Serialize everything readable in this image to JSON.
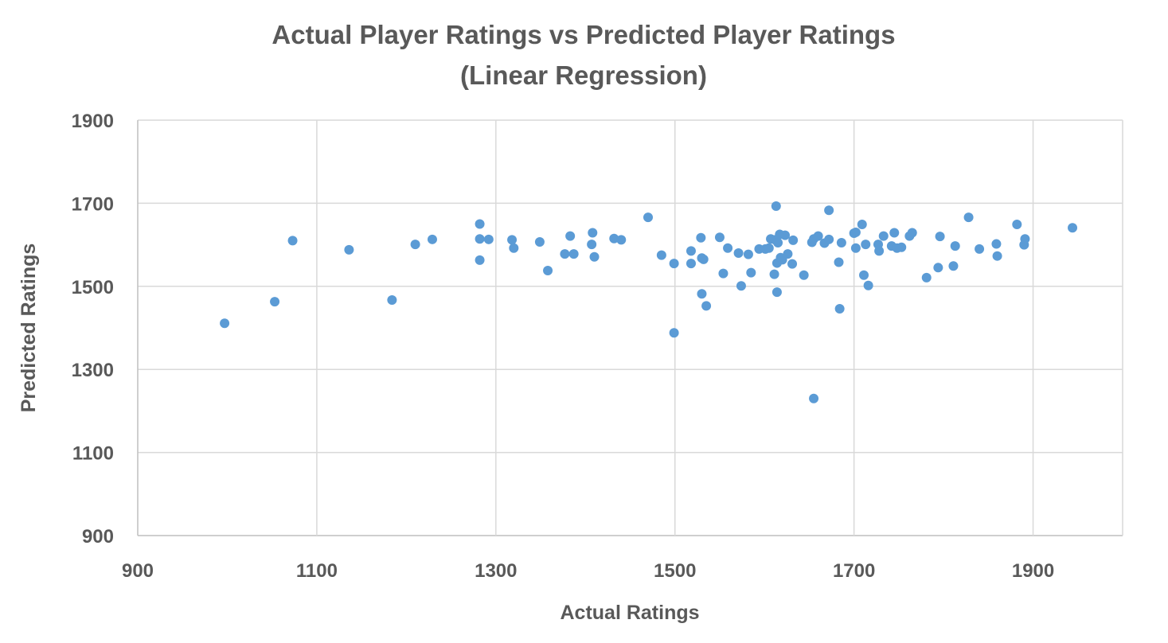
{
  "chart_data": {
    "type": "scatter",
    "title_lines": [
      "Actual Player Ratings vs Predicted Player Ratings",
      "(Linear Regression)"
    ],
    "xlabel": "Actual Ratings",
    "ylabel": "Predicted Ratings",
    "xlim": [
      900,
      2000
    ],
    "ylim": [
      900,
      1900
    ],
    "xticks": [
      900,
      1100,
      1300,
      1500,
      1700,
      1900
    ],
    "yticks": [
      900,
      1100,
      1300,
      1500,
      1700,
      1900
    ],
    "grid": true,
    "legend": "none",
    "marker_color": "#5b9bd5",
    "points": [
      [
        997,
        1411
      ],
      [
        1053,
        1463
      ],
      [
        1073,
        1610
      ],
      [
        1136,
        1588
      ],
      [
        1184,
        1467
      ],
      [
        1210,
        1601
      ],
      [
        1229,
        1613
      ],
      [
        1282,
        1650
      ],
      [
        1282,
        1614
      ],
      [
        1282,
        1563
      ],
      [
        1292,
        1613
      ],
      [
        1318,
        1612
      ],
      [
        1320,
        1592
      ],
      [
        1349,
        1607
      ],
      [
        1358,
        1538
      ],
      [
        1377,
        1578
      ],
      [
        1383,
        1621
      ],
      [
        1387,
        1578
      ],
      [
        1407,
        1601
      ],
      [
        1408,
        1629
      ],
      [
        1410,
        1571
      ],
      [
        1432,
        1615
      ],
      [
        1440,
        1612
      ],
      [
        1470,
        1666
      ],
      [
        1485,
        1575
      ],
      [
        1499,
        1388
      ],
      [
        1499,
        1555
      ],
      [
        1518,
        1555
      ],
      [
        1518,
        1585
      ],
      [
        1529,
        1617
      ],
      [
        1530,
        1482
      ],
      [
        1530,
        1568
      ],
      [
        1532,
        1565
      ],
      [
        1535,
        1453
      ],
      [
        1550,
        1618
      ],
      [
        1554,
        1531
      ],
      [
        1559,
        1592
      ],
      [
        1571,
        1580
      ],
      [
        1574,
        1501
      ],
      [
        1582,
        1577
      ],
      [
        1585,
        1533
      ],
      [
        1594,
        1590
      ],
      [
        1601,
        1590
      ],
      [
        1605,
        1592
      ],
      [
        1607,
        1614
      ],
      [
        1611,
        1529
      ],
      [
        1612,
        1612
      ],
      [
        1613,
        1693
      ],
      [
        1614,
        1556
      ],
      [
        1614,
        1486
      ],
      [
        1615,
        1605
      ],
      [
        1617,
        1625
      ],
      [
        1618,
        1569
      ],
      [
        1620,
        1564
      ],
      [
        1623,
        1623
      ],
      [
        1626,
        1578
      ],
      [
        1631,
        1554
      ],
      [
        1632,
        1611
      ],
      [
        1644,
        1527
      ],
      [
        1653,
        1606
      ],
      [
        1655,
        1230
      ],
      [
        1655,
        1614
      ],
      [
        1660,
        1621
      ],
      [
        1667,
        1604
      ],
      [
        1672,
        1613
      ],
      [
        1672,
        1683
      ],
      [
        1683,
        1558
      ],
      [
        1684,
        1446
      ],
      [
        1686,
        1605
      ],
      [
        1700,
        1628
      ],
      [
        1702,
        1630
      ],
      [
        1702,
        1592
      ],
      [
        1709,
        1649
      ],
      [
        1711,
        1527
      ],
      [
        1713,
        1601
      ],
      [
        1716,
        1502
      ],
      [
        1727,
        1601
      ],
      [
        1728,
        1585
      ],
      [
        1733,
        1621
      ],
      [
        1742,
        1597
      ],
      [
        1745,
        1629
      ],
      [
        1748,
        1592
      ],
      [
        1753,
        1594
      ],
      [
        1762,
        1621
      ],
      [
        1765,
        1629
      ],
      [
        1781,
        1521
      ],
      [
        1794,
        1545
      ],
      [
        1796,
        1620
      ],
      [
        1811,
        1549
      ],
      [
        1813,
        1597
      ],
      [
        1840,
        1590
      ],
      [
        1828,
        1666
      ],
      [
        1859,
        1602
      ],
      [
        1860,
        1573
      ],
      [
        1882,
        1649
      ],
      [
        1890,
        1600
      ],
      [
        1891,
        1614
      ],
      [
        1944,
        1641
      ]
    ]
  }
}
